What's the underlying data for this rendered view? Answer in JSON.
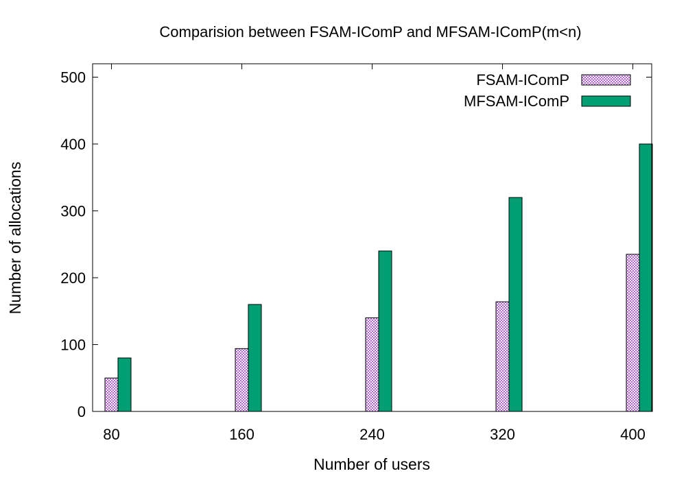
{
  "chart_data": {
    "type": "bar",
    "title": "Comparision between FSAM-IComP and MFSAM-IComP(m<n)",
    "xlabel": "Number of users",
    "ylabel": "Number of allocations",
    "categories": [
      "80",
      "160",
      "240",
      "320",
      "400"
    ],
    "series": [
      {
        "name": "FSAM-IComP",
        "values": [
          50,
          94,
          140,
          164,
          235
        ],
        "color": "#b35fd3",
        "fill": "pattern-dots"
      },
      {
        "name": "MFSAM-IComP",
        "values": [
          80,
          160,
          240,
          320,
          400
        ],
        "color": "#009e73",
        "fill": "solid"
      }
    ],
    "ylim": [
      0,
      520
    ],
    "yticks": [
      0,
      100,
      200,
      300,
      400,
      500
    ],
    "grid": false,
    "legend": "top-right"
  }
}
